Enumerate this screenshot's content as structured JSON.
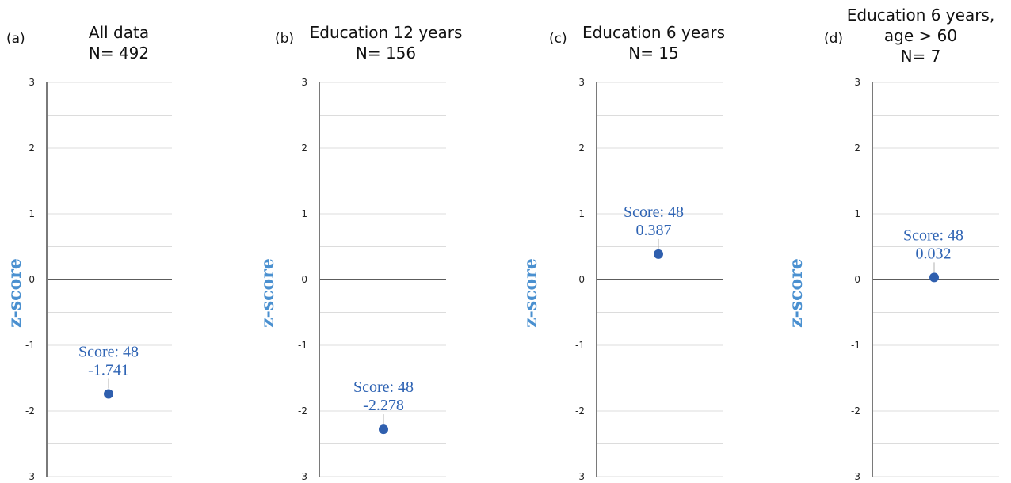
{
  "colors": {
    "point": "#2f5fae",
    "annotation": "#2f64b4",
    "ylabel": "#4a90d0",
    "grid": "#dcdcdc",
    "axis": "#7a7a7a",
    "zero_line": "#5c5c5c"
  },
  "chart_data": [
    {
      "type": "scatter",
      "panel": "(a)",
      "title": [
        "All data",
        "N= 492"
      ],
      "ylabel": "z-score",
      "ylim": [
        -3,
        3
      ],
      "yticks": [
        "3",
        "2",
        "1",
        "0",
        "-1",
        "-2",
        "-3"
      ],
      "grid": true,
      "points": [
        {
          "y": -1.741,
          "label_line1": "Score: 48",
          "label_line2": "-1.741"
        }
      ]
    },
    {
      "type": "scatter",
      "panel": "(b)",
      "title": [
        "Education 12 years",
        "N= 156"
      ],
      "ylabel": "z-score",
      "ylim": [
        -3,
        3
      ],
      "yticks": [
        "3",
        "2",
        "1",
        "0",
        "-1",
        "-2",
        "-3"
      ],
      "grid": true,
      "points": [
        {
          "y": -2.278,
          "label_line1": "Score: 48",
          "label_line2": "-2.278"
        }
      ]
    },
    {
      "type": "scatter",
      "panel": "(c)",
      "title": [
        "Education 6 years",
        "N= 15"
      ],
      "ylabel": "z-score",
      "ylim": [
        -3,
        3
      ],
      "yticks": [
        "3",
        "2",
        "1",
        "0",
        "-1",
        "-2",
        "-3"
      ],
      "grid": true,
      "points": [
        {
          "y": 0.387,
          "label_line1": "Score: 48",
          "label_line2": "0.387"
        }
      ]
    },
    {
      "type": "scatter",
      "panel": "(d)",
      "title": [
        "Education 6 years,",
        "age > 60",
        "N= 7"
      ],
      "ylabel": "z-score",
      "ylim": [
        -3,
        3
      ],
      "yticks": [
        "3",
        "2",
        "1",
        "0",
        "-1",
        "-2",
        "-3"
      ],
      "grid": true,
      "points": [
        {
          "y": 0.032,
          "label_line1": "Score: 48",
          "label_line2": "0.032"
        }
      ]
    }
  ]
}
